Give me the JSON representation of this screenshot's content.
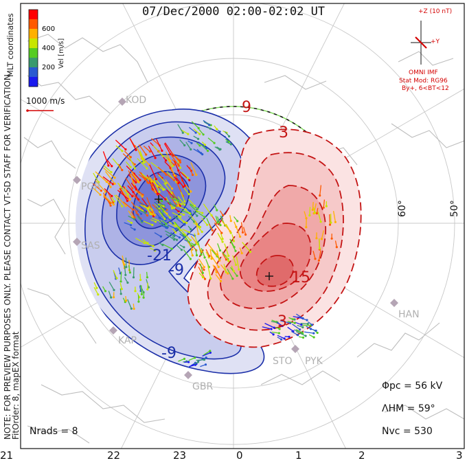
{
  "title": "07/Dec/2000 02:00-02:02 UT",
  "coordinates_label": "MLT coordinates",
  "colorbar": {
    "label": "Vel [m/s]",
    "ticks": [
      "600",
      "400",
      "200"
    ],
    "colors": [
      "#ff0000",
      "#ff5a00",
      "#ffb000",
      "#c8e600",
      "#55cc22",
      "#3a9a6e",
      "#2a5ad0",
      "#1a1aee"
    ]
  },
  "scale_vector": "1000 m/s",
  "disclaimer": "NOTE: FOR PREVIEW PURPOSES ONLY. PLEASE CONTACT VT-SD STAFF FOR VERIFICATION.",
  "fit_info": "FitOrder: 8, mapEX format",
  "imf": {
    "z_label": "+Z (10 nT)",
    "y_label": "+Y",
    "source": "OMNI IMF",
    "model": "Stat Mod: RG96",
    "model_params": "By+, 6<BT<12"
  },
  "latitude_labels": [
    "60°",
    "50°"
  ],
  "contour_labels": {
    "negative": [
      "-21",
      "-9",
      "-9"
    ],
    "positive": [
      "9",
      "3",
      "15",
      "3"
    ]
  },
  "stations": [
    "KOD",
    "PGR",
    "SAS",
    "KAP",
    "GBR",
    "STO",
    "PYK",
    "HAN"
  ],
  "stats": {
    "phi_pc": "Φpc = 56 kV",
    "lambda_hm": "ΛHM = 59°",
    "n_vc": "Nvc = 530",
    "n_rads": "Nrads = 8"
  },
  "mlt_labels": [
    "21",
    "22",
    "23",
    "0",
    "1",
    "2",
    "3"
  ]
}
